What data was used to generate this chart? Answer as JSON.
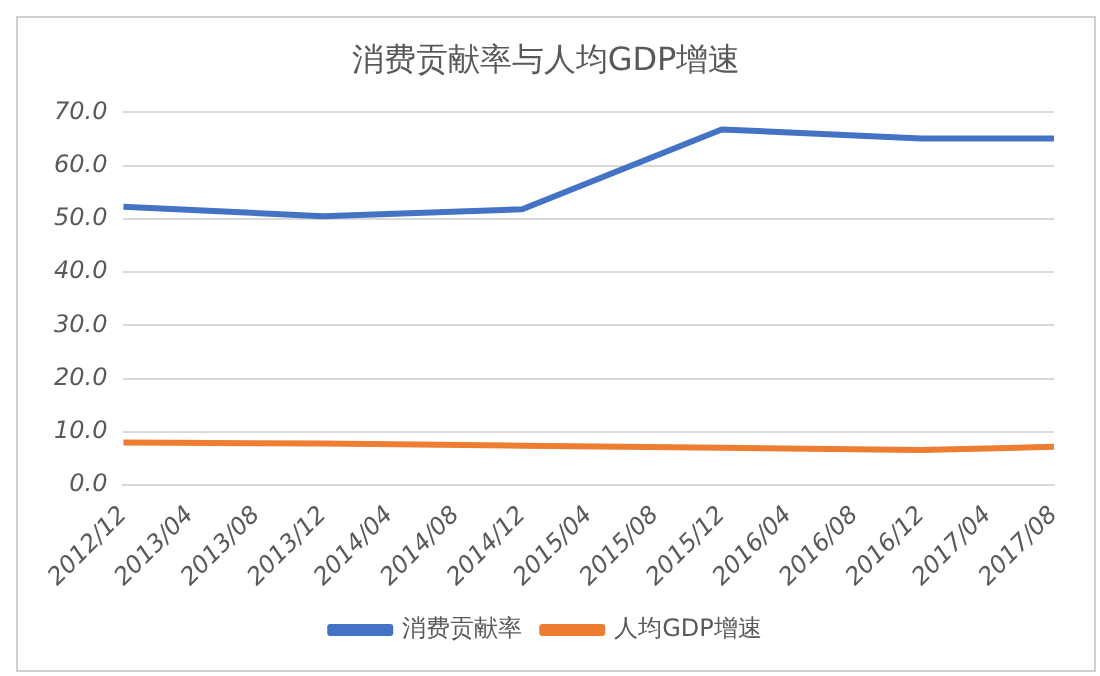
{
  "chart_data": {
    "type": "line",
    "title": "消费贡献率与人均GDP增速",
    "categories": [
      "2012/12",
      "2013/04",
      "2013/08",
      "2013/12",
      "2014/04",
      "2014/08",
      "2014/12",
      "2015/04",
      "2015/08",
      "2015/12",
      "2016/04",
      "2016/08",
      "2016/12",
      "2017/04",
      "2017/08"
    ],
    "series": [
      {
        "name": "消费贡献率",
        "color": "#4472c4",
        "values": [
          52.3,
          null,
          null,
          50.5,
          null,
          null,
          51.8,
          null,
          null,
          66.8,
          null,
          null,
          65.1,
          null,
          65.1
        ]
      },
      {
        "name": "人均GDP增速",
        "color": "#ed7d31",
        "values": [
          8.0,
          null,
          null,
          7.8,
          null,
          null,
          7.4,
          null,
          null,
          7.0,
          null,
          null,
          6.6,
          null,
          7.2
        ]
      }
    ],
    "ylim": [
      0,
      70
    ],
    "yticks": [
      {
        "value": 0,
        "label": "0.0"
      },
      {
        "value": 10,
        "label": "10.0"
      },
      {
        "value": 20,
        "label": "20.0"
      },
      {
        "value": 30,
        "label": "30.0"
      },
      {
        "value": 40,
        "label": "40.0"
      },
      {
        "value": 50,
        "label": "50.0"
      },
      {
        "value": 60,
        "label": "60.0"
      },
      {
        "value": 70,
        "label": "70.0"
      }
    ],
    "grid": "y",
    "legend": "bottom",
    "marker": "none",
    "line_style": "solid"
  }
}
